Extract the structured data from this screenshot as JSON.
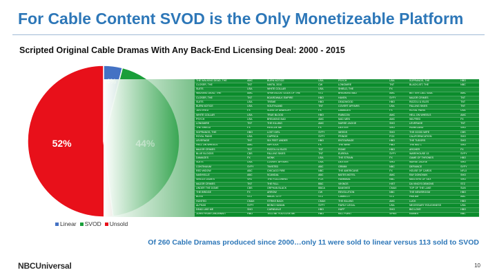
{
  "slide": {
    "title": "For Cable Content SVOD is the Only Monetizeable Platform",
    "footnote": "Of 260 Cable Dramas produced since 2000…only 11 were sold to linear versus 113 sold to SVOD",
    "logo": "NBCUniversal",
    "page_number": "10"
  },
  "colors": {
    "linear": "#4472c4",
    "svod": "#1a9e3a",
    "unsold": "#e8101a",
    "title_blue": "#2d77b8",
    "table_green": "#0b8c2c"
  },
  "chart_data": {
    "type": "pie",
    "title": "Scripted Original Cable Dramas With Any Back-End Licensing Deal: 2000 - 2015",
    "categories": [
      "Linear",
      "SVOD",
      "Unsold"
    ],
    "values": [
      4,
      44,
      52
    ],
    "data_labels": [
      "4%",
      "44%",
      "52%"
    ],
    "legend_position": "bottom-left"
  },
  "deals_table": {
    "rows": [
      [
        "THE WALKING DEAD, THE",
        "AMC",
        "BURN NOTICE",
        "USA",
        "PSYCH",
        "USA",
        "SOPRANOS, THE",
        "HBO"
      ],
      [
        "CLOSER, THE",
        "TNT",
        "NIKITA, 2010",
        "CW",
        "LONGMIRE",
        "TNT",
        "BLACKLIST, THE",
        "NBC"
      ],
      [
        "SUITS",
        "USA",
        "WHITE COLLAR",
        "USA",
        "SHIELD, THE",
        "FX",
        "",
        ""
      ],
      [
        "WALKING DEAD, THE",
        "AMC",
        "SPARTACUS: GODS OF THE",
        "STZ",
        "BREAKING BAD",
        "AMC",
        "BETTER CALL SAUL",
        "AMC"
      ],
      [
        "CLOSER, THE",
        "TNT",
        "BOARDWALK EMPIRE",
        "HBO",
        "HAVEN",
        "SYFY",
        "MAJOR CRIMES",
        "TNT"
      ],
      [
        "SUITS",
        "USA",
        "TREME",
        "HBO",
        "DEADWOOD",
        "HBO",
        "RIZZOLI & ISLES",
        "TNT"
      ],
      [
        "BURN NOTICE",
        "USA",
        "SOUTHLAND",
        "TNT",
        "COVERT AFFAIRS",
        "USA",
        "FALLING SKIES",
        "TNT"
      ],
      [
        "JUSTIFIED",
        "FX",
        "SONS OF ANARCHY",
        "FX",
        "DAMAGES",
        "FX",
        "ROYAL PAINS",
        "USA"
      ],
      [
        "WHITE COLLAR",
        "USA",
        "TRUE BLOOD",
        "HBO",
        "RUBICON",
        "AMC",
        "HELL ON WHEELS",
        "AMC"
      ],
      [
        "PSYCH",
        "USA",
        "BREAKING BAD",
        "AMC",
        "MAD MEN",
        "AMC",
        "WILFRED",
        "FX"
      ],
      [
        "LONGMIRE",
        "TNT",
        "THE KILLING",
        "AMC",
        "NURSE JACKIE",
        "SHO",
        "LEVERAGE",
        "TNT"
      ],
      [
        "THE SHIELD",
        "FX",
        "RESCUE ME",
        "FX",
        "DEXTER",
        "SHO",
        "HOMELAND",
        "SHO"
      ],
      [
        "SOPRANOS, THE",
        "HBO",
        "LOST GIRL",
        "SYFY",
        "WEEDS",
        "SHO",
        "THE GOOD WIFE",
        "CBS"
      ],
      [
        "ROYAL PAINS",
        "USA",
        "CAPRICA",
        "SYFY",
        "FRINGE",
        "FOX",
        "CALIFORNICATION",
        "SHO"
      ],
      [
        "LEVERAGE",
        "TNT",
        "SIX FEET UNDER",
        "HBO",
        "ENTOURAGE",
        "HBO",
        "THE TUDORS",
        "SHO"
      ],
      [
        "HELL ON WHEELS",
        "AMC",
        "NIP/TUCK",
        "FX",
        "THE WIRE",
        "HBO",
        "THE BIG C",
        "SHO"
      ],
      [
        "MAJOR CRIMES",
        "TNT",
        "RIZZOLI & ISLES",
        "TNT",
        "ROME",
        "HBO",
        "ARCHER",
        "FX"
      ],
      [
        "BLUE BLOODS",
        "CBS",
        "FALLING SKIES",
        "TNT",
        "EUREKA",
        "SYFY",
        "WAREHOUSE 13",
        "SYFY"
      ],
      [
        "DAMAGES",
        "FX",
        "MONK",
        "USA",
        "THE STRAIN",
        "FX",
        "GAME OF THRONES",
        "HBO"
      ],
      [
        "SUITS",
        "USA",
        "COVERT AFFAIRS",
        "USA",
        "DEXTER",
        "SHO",
        "NURSE JACKIE",
        "SHO"
      ],
      [
        "CONTINUUM",
        "SYFY",
        "TWISTED",
        "ABC",
        "GRIMM",
        "NBC",
        "DEFIANCE",
        "SYFY"
      ],
      [
        "RED WIDOW",
        "ABC",
        "CHICAGO FIRE",
        "NBC",
        "THE AMERICANS",
        "FX",
        "HOUSE OF CARDS",
        "NFLX"
      ],
      [
        "NASHVILLE",
        "ABC",
        "SCANDAL",
        "ABC",
        "BATES MOTEL",
        "AMC",
        "RAY DONOVAN",
        "SHO"
      ],
      [
        "SINGLE LADIES",
        "VH1",
        "THE FOLLOWING",
        "FOX",
        "HANNIBAL",
        "NBC",
        "MASTERS OF SEX",
        "SHO"
      ],
      [
        "MAJOR CRIMES",
        "TNT",
        "THE FALL",
        "BBC",
        "VIKINGS",
        "HIST",
        "DA VINCI'S DEMONS",
        "STZ"
      ],
      [
        "UNDER THE DOME",
        "CBS",
        "ORPHAN BLACK",
        "BBCA",
        "BANSHEE",
        "CMAX",
        "TOP OF THE LAKE",
        "SUN"
      ],
      [
        "THE BRIDGE",
        "FX",
        "ARROW",
        "CW",
        "REVOLUTION",
        "NBC",
        "THE NEWSROOM",
        "HBO"
      ],
      [
        "BOSS",
        "STZ",
        "MAGIC CITY",
        "STZ",
        "CAMELOT",
        "STZ",
        "PAN AM",
        "ABC"
      ],
      [
        "HUNTED",
        "CMAX",
        "STRIKE BACK",
        "CMAX",
        "THE KILLING",
        "AMC",
        "LUCK",
        "HBO"
      ],
      [
        "ALPHAS",
        "SYFY",
        "BEING HUMAN",
        "SYFY",
        "FAIRLY LEGAL",
        "USA",
        "NECESSARY ROUGHNESS",
        "USA"
      ],
      [
        "DEAD LIKE ME",
        "SHO",
        "CARNIVALE",
        "HBO",
        "HUFF",
        "SHO",
        "BIG LOVE",
        "HBO"
      ],
      [
        "JOHN FROM CINCINNATI",
        "HBO",
        "TELL ME YOU LOVE ME",
        "HBO",
        "KILL POINT",
        "SPIKE",
        "RAINES",
        "NBC"
      ]
    ]
  }
}
